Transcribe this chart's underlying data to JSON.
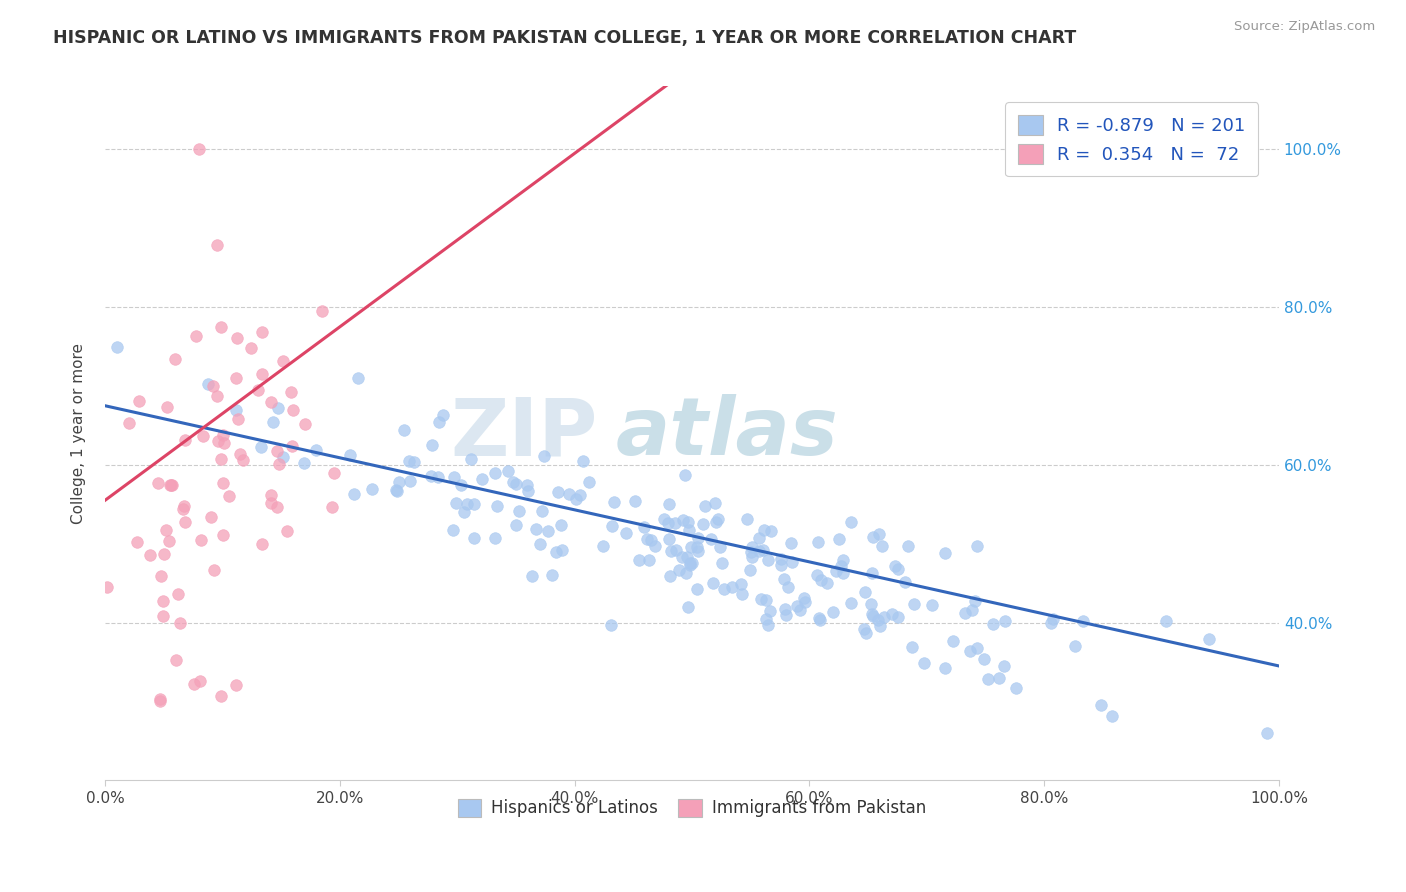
{
  "title": "HISPANIC OR LATINO VS IMMIGRANTS FROM PAKISTAN COLLEGE, 1 YEAR OR MORE CORRELATION CHART",
  "source": "Source: ZipAtlas.com",
  "ylabel": "College, 1 year or more",
  "xmin": 0.0,
  "xmax": 1.0,
  "ymin": 0.2,
  "ymax": 1.08,
  "blue_R": -0.879,
  "blue_N": 201,
  "pink_R": 0.354,
  "pink_N": 72,
  "blue_color": "#a8c8f0",
  "pink_color": "#f4a0b8",
  "blue_line_color": "#3366bb",
  "pink_line_color": "#dd4466",
  "watermark_zip": "ZIP",
  "watermark_atlas": "atlas",
  "legend_label_blue": "Hispanics or Latinos",
  "legend_label_pink": "Immigrants from Pakistan",
  "xtick_labels": [
    "0.0%",
    "20.0%",
    "40.0%",
    "60.0%",
    "80.0%",
    "100.0%"
  ],
  "xtick_values": [
    0.0,
    0.2,
    0.4,
    0.6,
    0.8,
    1.0
  ],
  "ytick_labels_right": [
    "40.0%",
    "60.0%",
    "80.0%",
    "100.0%"
  ],
  "ytick_values_right": [
    0.4,
    0.6,
    0.8,
    1.0
  ]
}
